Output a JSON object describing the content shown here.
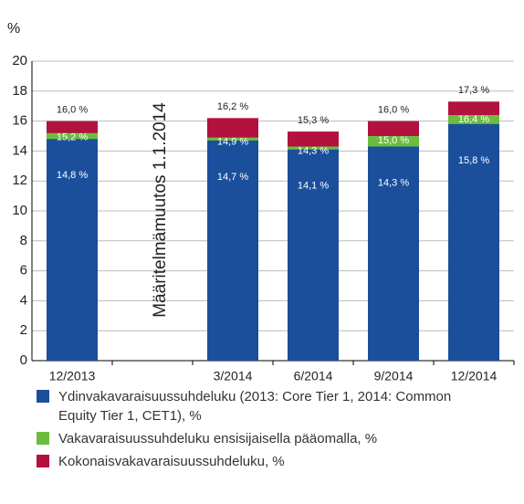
{
  "chart_data": {
    "type": "overlapping_bar",
    "y_label": "%",
    "annotation": "Määritelmämuutos 1.1.2014",
    "categories": [
      "12/2013",
      null,
      "3/2014",
      "6/2014",
      "9/2014",
      "12/2014"
    ],
    "series": [
      {
        "name": "Ydinvakavaraisuussuhdeluku (2013: Core Tier 1, 2014: Common Equity Tier 1, CET1), %",
        "color": "#1b4f9c",
        "values": [
          14.8,
          null,
          14.7,
          14.1,
          14.3,
          15.8
        ],
        "value_labels": [
          "14,8 %",
          null,
          "14,7 %",
          "14,1 %",
          "14,3 %",
          "15,8 %"
        ]
      },
      {
        "name": "Vakavaraisuussuhdeluku ensisijaisella pääomalla, %",
        "color": "#6cbd3e",
        "values": [
          15.2,
          null,
          14.9,
          14.3,
          15.0,
          16.4
        ],
        "value_labels": [
          "15,2 %",
          null,
          "14,9 %",
          "14,3 %",
          "15,0 %",
          "16,4 %"
        ]
      },
      {
        "name": "Kokonaisvakavaraisuussuhdeluku, %",
        "color": "#b3123e",
        "values": [
          16.0,
          null,
          16.2,
          15.3,
          16.0,
          17.3
        ],
        "value_labels": [
          "16,0 %",
          null,
          "16,2 %",
          "15,3 %",
          "16,0 %",
          "17,3 %"
        ]
      }
    ],
    "ylim": [
      0,
      20
    ],
    "yticks": [
      0,
      2,
      4,
      6,
      8,
      10,
      12,
      14,
      16,
      18,
      20
    ],
    "grid": true
  }
}
